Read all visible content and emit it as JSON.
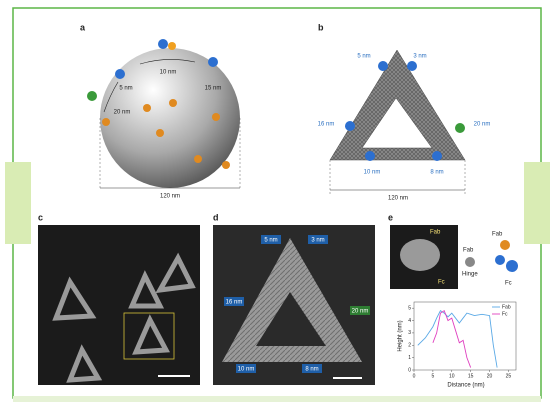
{
  "panel_a": {
    "label": "a",
    "dims": [
      "10 nm",
      "5 nm",
      "15 nm",
      "20 nm"
    ],
    "scale": "120 nm"
  },
  "panel_b": {
    "label": "b",
    "dims": [
      "5 nm",
      "3 nm",
      "16 nm",
      "20 nm",
      "10 nm",
      "8 nm"
    ],
    "scale": "120 nm"
  },
  "panel_c": {
    "label": "c"
  },
  "panel_d": {
    "label": "d",
    "dims": [
      "5 nm",
      "3 nm",
      "16 nm",
      "20 nm",
      "10 nm",
      "8 nm"
    ]
  },
  "panel_e": {
    "label": "e",
    "image_labels": [
      "Fab",
      "Fc",
      "Fab",
      "Hinge",
      "Fab",
      "Fc"
    ],
    "chart_data": {
      "type": "line",
      "xlabel": "Distance (nm)",
      "ylabel": "Height (nm)",
      "x": [
        1,
        3,
        5,
        6,
        7,
        8,
        9,
        10,
        11,
        12,
        13,
        14,
        15,
        16,
        18,
        20,
        21,
        22
      ],
      "series": [
        {
          "name": "Fab",
          "color": "#5aa9e6",
          "values": [
            2,
            2.6,
            3.5,
            4.2,
            4.8,
            4.6,
            4.3,
            4.6,
            4.2,
            3.8,
            4.2,
            4.6,
            4.5,
            4.4,
            4.5,
            4.4,
            2,
            0.2
          ]
        },
        {
          "name": "Fc",
          "color": "#e040c0",
          "values": [
            null,
            null,
            2.2,
            3,
            4.6,
            4.8,
            4,
            4.2,
            3.2,
            2.2,
            2.4,
            1,
            0.2,
            null,
            null,
            null,
            null,
            null
          ]
        }
      ],
      "xlim": [
        0,
        27
      ],
      "ylim": [
        0,
        5.5
      ],
      "xticks": [
        0,
        5,
        10,
        15,
        20,
        25
      ],
      "yticks": [
        0,
        1,
        2,
        3,
        4,
        5
      ],
      "legend": "upper-right"
    }
  }
}
